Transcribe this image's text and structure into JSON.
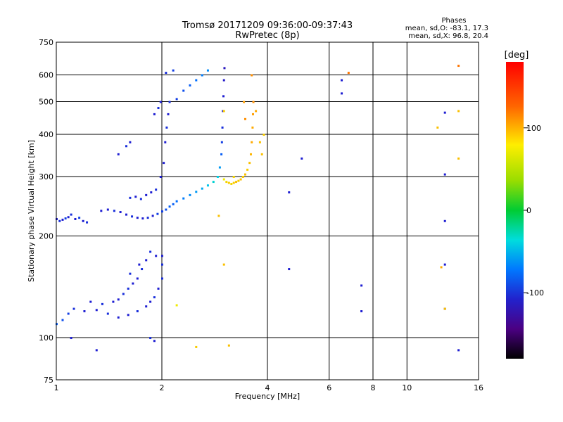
{
  "chart_data": {
    "type": "scatter",
    "title": "Tromsø 20171209 09:36:00-09:37:43",
    "subtitle": "RwPretec (8p)",
    "xlabel": "Frequency [MHz]",
    "ylabel": "Stationary phase Virtual Height [km]",
    "x_scale": "log",
    "y_scale": "log",
    "xlim": [
      1,
      16
    ],
    "ylim": [
      75,
      750
    ],
    "grid": true,
    "x_ticks": [
      1,
      2,
      4,
      6,
      8,
      10,
      16
    ],
    "x_tick_labels": [
      "1",
      "2",
      "4",
      "6",
      "8",
      "10",
      "16"
    ],
    "y_ticks": [
      75,
      100,
      200,
      300,
      400,
      500,
      600,
      750
    ],
    "y_tick_labels": [
      "75",
      "100",
      "200",
      "300",
      "400",
      "500",
      "600",
      "750"
    ],
    "stats": {
      "header": "Phases",
      "line1": "mean, sd,O: -83.1, 17.3",
      "line2": "mean, sd,X: 96.8, 20.4"
    },
    "colorbar": {
      "label": "[deg]",
      "range": [
        -180,
        180
      ],
      "ticks": [
        100,
        0,
        -100
      ],
      "tick_labels": [
        "100",
        "0",
        "-100"
      ]
    },
    "series": [
      {
        "mode": "O",
        "points": [
          [
            1.0,
            225,
            -100
          ],
          [
            1.02,
            222,
            -95
          ],
          [
            1.04,
            224,
            -100
          ],
          [
            1.06,
            226,
            -90
          ],
          [
            1.08,
            228,
            -100
          ],
          [
            1.1,
            232,
            -95
          ],
          [
            1.13,
            225,
            -100
          ],
          [
            1.16,
            227,
            -90
          ],
          [
            1.19,
            222,
            -100
          ],
          [
            1.22,
            220,
            -95
          ],
          [
            1.34,
            238,
            -100
          ],
          [
            1.4,
            240,
            -100
          ],
          [
            1.46,
            238,
            -95
          ],
          [
            1.52,
            236,
            -100
          ],
          [
            1.58,
            232,
            -100
          ],
          [
            1.64,
            229,
            -95
          ],
          [
            1.7,
            227,
            -100
          ],
          [
            1.76,
            226,
            -100
          ],
          [
            1.82,
            227,
            -95
          ],
          [
            1.88,
            230,
            -100
          ],
          [
            1.94,
            233,
            -90
          ],
          [
            2.0,
            237,
            -90
          ],
          [
            2.05,
            240,
            -85
          ],
          [
            2.1,
            245,
            -80
          ],
          [
            2.15,
            249,
            -80
          ],
          [
            2.2,
            254,
            -75
          ],
          [
            2.3,
            259,
            -70
          ],
          [
            2.4,
            265,
            -65
          ],
          [
            2.5,
            271,
            -60
          ],
          [
            2.6,
            277,
            -55
          ],
          [
            2.7,
            283,
            -45
          ],
          [
            2.8,
            290,
            -35
          ],
          [
            2.88,
            300,
            -40
          ],
          [
            2.92,
            320,
            -60
          ],
          [
            2.95,
            350,
            -80
          ],
          [
            2.96,
            380,
            -90
          ],
          [
            2.97,
            420,
            -95
          ],
          [
            2.98,
            470,
            -100
          ],
          [
            2.99,
            520,
            -100
          ],
          [
            3.0,
            580,
            -105
          ],
          [
            3.01,
            630,
            -110
          ],
          [
            1.62,
            260,
            -95
          ],
          [
            1.68,
            262,
            -100
          ],
          [
            1.74,
            258,
            -95
          ],
          [
            1.8,
            265,
            -100
          ],
          [
            1.86,
            270,
            -100
          ],
          [
            1.92,
            275,
            -95
          ],
          [
            1.98,
            300,
            -100
          ],
          [
            2.02,
            330,
            -100
          ],
          [
            2.04,
            380,
            -100
          ],
          [
            2.06,
            420,
            -95
          ],
          [
            2.08,
            460,
            -100
          ],
          [
            2.1,
            500,
            -95
          ],
          [
            2.2,
            510,
            -90
          ],
          [
            2.3,
            540,
            -85
          ],
          [
            2.4,
            560,
            -80
          ],
          [
            2.5,
            580,
            -75
          ],
          [
            2.6,
            600,
            -70
          ],
          [
            2.7,
            620,
            -65
          ],
          [
            1.5,
            350,
            -100
          ],
          [
            1.58,
            370,
            -95
          ],
          [
            1.62,
            380,
            -100
          ],
          [
            1.9,
            460,
            -100
          ],
          [
            1.95,
            480,
            -95
          ],
          [
            1.98,
            500,
            -100
          ],
          [
            2.05,
            610,
            -95
          ],
          [
            2.15,
            620,
            -90
          ],
          [
            1.0,
            110,
            -80
          ],
          [
            1.04,
            113,
            -85
          ],
          [
            1.08,
            118,
            -90
          ],
          [
            1.12,
            122,
            -95
          ],
          [
            1.2,
            120,
            -100
          ],
          [
            1.3,
            121,
            -100
          ],
          [
            1.4,
            118,
            -95
          ],
          [
            1.5,
            115,
            -100
          ],
          [
            1.6,
            117,
            -100
          ],
          [
            1.7,
            120,
            -95
          ],
          [
            1.8,
            124,
            -100
          ],
          [
            1.85,
            128,
            -100
          ],
          [
            1.9,
            132,
            -95
          ],
          [
            1.95,
            140,
            -100
          ],
          [
            2.0,
            150,
            -95
          ],
          [
            1.5,
            130,
            -100
          ],
          [
            1.6,
            140,
            -95
          ],
          [
            1.7,
            150,
            -100
          ],
          [
            1.75,
            160,
            -95
          ],
          [
            1.8,
            170,
            -100
          ],
          [
            1.65,
            145,
            -100
          ],
          [
            1.55,
            135,
            -95
          ],
          [
            1.45,
            128,
            -100
          ],
          [
            1.35,
            126,
            -95
          ],
          [
            1.25,
            128,
            -100
          ],
          [
            1.85,
            180,
            -95
          ],
          [
            1.92,
            175,
            -100
          ],
          [
            2.0,
            165,
            -95
          ],
          [
            1.72,
            165,
            -100
          ],
          [
            1.62,
            155,
            -95
          ],
          [
            1.1,
            100,
            -100
          ],
          [
            1.3,
            92,
            -100
          ],
          [
            1.85,
            100,
            -95
          ],
          [
            1.9,
            98,
            -100
          ],
          [
            2.0,
            175,
            -100
          ],
          [
            6.5,
            580,
            -100
          ],
          [
            6.5,
            530,
            -100
          ],
          [
            12.8,
            465,
            -100
          ],
          [
            12.8,
            305,
            -100
          ],
          [
            12.8,
            222,
            -100
          ],
          [
            12.8,
            165,
            -100
          ],
          [
            12.8,
            122,
            -100
          ],
          [
            14.0,
            92,
            -100
          ],
          [
            7.4,
            143,
            -100
          ],
          [
            7.4,
            120,
            -100
          ],
          [
            5.0,
            340,
            -100
          ],
          [
            4.6,
            270,
            -100
          ],
          [
            4.6,
            160,
            -100
          ]
        ]
      },
      {
        "mode": "X",
        "points": [
          [
            3.0,
            295,
            80
          ],
          [
            3.05,
            290,
            90
          ],
          [
            3.1,
            288,
            95
          ],
          [
            3.15,
            286,
            90
          ],
          [
            3.2,
            288,
            95
          ],
          [
            3.25,
            290,
            100
          ],
          [
            3.3,
            292,
            95
          ],
          [
            3.35,
            295,
            100
          ],
          [
            3.4,
            300,
            95
          ],
          [
            3.45,
            305,
            100
          ],
          [
            3.5,
            315,
            95
          ],
          [
            3.55,
            330,
            100
          ],
          [
            3.58,
            350,
            105
          ],
          [
            3.6,
            380,
            110
          ],
          [
            3.62,
            420,
            110
          ],
          [
            3.63,
            460,
            115
          ],
          [
            3.64,
            500,
            120
          ],
          [
            3.8,
            380,
            100
          ],
          [
            3.9,
            400,
            95
          ],
          [
            3.85,
            350,
            100
          ],
          [
            3.45,
            445,
            120
          ],
          [
            3.42,
            500,
            115
          ],
          [
            3.0,
            470,
            95
          ],
          [
            2.2,
            125,
            80
          ],
          [
            2.5,
            94,
            95
          ],
          [
            3.6,
            600,
            120
          ],
          [
            3.7,
            470,
            110
          ],
          [
            3.2,
            300,
            90
          ],
          [
            2.9,
            230,
            100
          ],
          [
            6.8,
            610,
            130
          ],
          [
            14.0,
            640,
            130
          ],
          [
            12.2,
            420,
            100
          ],
          [
            14.0,
            470,
            100
          ],
          [
            14.0,
            340,
            100
          ],
          [
            12.8,
            122,
            100
          ],
          [
            12.5,
            162,
            110
          ],
          [
            3.1,
            95,
            100
          ],
          [
            3.0,
            165,
            100
          ]
        ]
      }
    ]
  }
}
